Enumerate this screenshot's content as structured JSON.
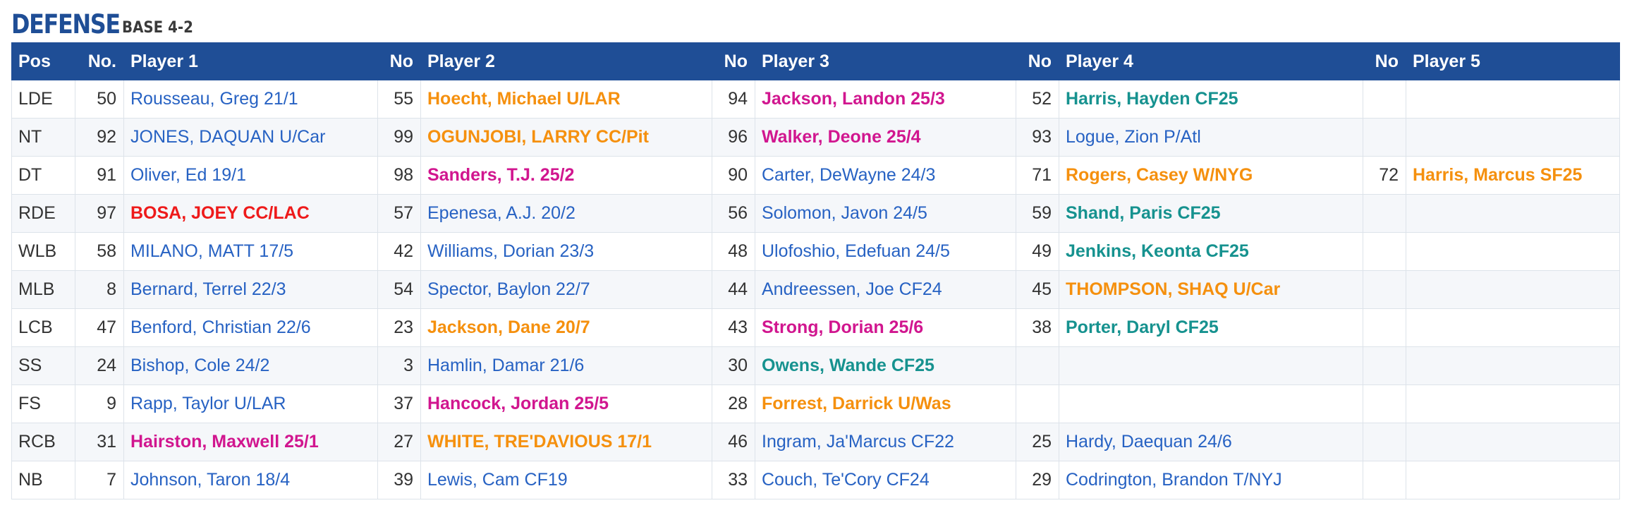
{
  "heading": {
    "title": "DEFENSE",
    "subtitle": "BASE 4-2"
  },
  "columns": [
    "Pos",
    "No.",
    "Player 1",
    "No",
    "Player 2",
    "No",
    "Player 3",
    "No",
    "Player 4",
    "No",
    "Player 5"
  ],
  "colors": {
    "header_bg": "#1f4e96",
    "blue": "#2762c3",
    "orange": "#f5900e",
    "magenta": "#d1168f",
    "teal": "#16928f",
    "red": "#ee1a1a"
  },
  "rows": [
    {
      "pos": "LDE",
      "players": [
        {
          "no": "50",
          "name": "Rousseau, Greg 21/1",
          "color": "blue",
          "bold": false
        },
        {
          "no": "55",
          "name": "Hoecht, Michael U/LAR",
          "color": "orange",
          "bold": true
        },
        {
          "no": "94",
          "name": "Jackson, Landon 25/3",
          "color": "magenta",
          "bold": true
        },
        {
          "no": "52",
          "name": "Harris, Hayden CF25",
          "color": "teal",
          "bold": true
        },
        {
          "no": "",
          "name": "",
          "color": "blue",
          "bold": false
        }
      ]
    },
    {
      "pos": "NT",
      "players": [
        {
          "no": "92",
          "name": "JONES, DAQUAN U/Car",
          "color": "blue",
          "bold": false
        },
        {
          "no": "99",
          "name": "OGUNJOBI, LARRY CC/Pit",
          "color": "orange",
          "bold": true
        },
        {
          "no": "96",
          "name": "Walker, Deone 25/4",
          "color": "magenta",
          "bold": true
        },
        {
          "no": "93",
          "name": "Logue, Zion P/Atl",
          "color": "blue",
          "bold": false
        },
        {
          "no": "",
          "name": "",
          "color": "blue",
          "bold": false
        }
      ]
    },
    {
      "pos": "DT",
      "players": [
        {
          "no": "91",
          "name": "Oliver, Ed 19/1",
          "color": "blue",
          "bold": false
        },
        {
          "no": "98",
          "name": "Sanders, T.J. 25/2",
          "color": "magenta",
          "bold": true
        },
        {
          "no": "90",
          "name": "Carter, DeWayne 24/3",
          "color": "blue",
          "bold": false
        },
        {
          "no": "71",
          "name": "Rogers, Casey W/NYG",
          "color": "orange",
          "bold": true
        },
        {
          "no": "72",
          "name": "Harris, Marcus SF25",
          "color": "orange",
          "bold": true
        }
      ]
    },
    {
      "pos": "RDE",
      "players": [
        {
          "no": "97",
          "name": "BOSA, JOEY CC/LAC",
          "color": "red",
          "bold": true
        },
        {
          "no": "57",
          "name": "Epenesa, A.J. 20/2",
          "color": "blue",
          "bold": false
        },
        {
          "no": "56",
          "name": "Solomon, Javon 24/5",
          "color": "blue",
          "bold": false
        },
        {
          "no": "59",
          "name": "Shand, Paris CF25",
          "color": "teal",
          "bold": true
        },
        {
          "no": "",
          "name": "",
          "color": "blue",
          "bold": false
        }
      ]
    },
    {
      "pos": "WLB",
      "players": [
        {
          "no": "58",
          "name": "MILANO, MATT 17/5",
          "color": "blue",
          "bold": false
        },
        {
          "no": "42",
          "name": "Williams, Dorian 23/3",
          "color": "blue",
          "bold": false
        },
        {
          "no": "48",
          "name": "Ulofoshio, Edefuan 24/5",
          "color": "blue",
          "bold": false
        },
        {
          "no": "49",
          "name": "Jenkins, Keonta CF25",
          "color": "teal",
          "bold": true
        },
        {
          "no": "",
          "name": "",
          "color": "blue",
          "bold": false
        }
      ]
    },
    {
      "pos": "MLB",
      "players": [
        {
          "no": "8",
          "name": "Bernard, Terrel 22/3",
          "color": "blue",
          "bold": false
        },
        {
          "no": "54",
          "name": "Spector, Baylon 22/7",
          "color": "blue",
          "bold": false
        },
        {
          "no": "44",
          "name": "Andreessen, Joe CF24",
          "color": "blue",
          "bold": false
        },
        {
          "no": "45",
          "name": "THOMPSON, SHAQ U/Car",
          "color": "orange",
          "bold": true
        },
        {
          "no": "",
          "name": "",
          "color": "blue",
          "bold": false
        }
      ]
    },
    {
      "pos": "LCB",
      "players": [
        {
          "no": "47",
          "name": "Benford, Christian 22/6",
          "color": "blue",
          "bold": false
        },
        {
          "no": "23",
          "name": "Jackson, Dane 20/7",
          "color": "orange",
          "bold": true
        },
        {
          "no": "43",
          "name": "Strong, Dorian 25/6",
          "color": "magenta",
          "bold": true
        },
        {
          "no": "38",
          "name": "Porter, Daryl CF25",
          "color": "teal",
          "bold": true
        },
        {
          "no": "",
          "name": "",
          "color": "blue",
          "bold": false
        }
      ]
    },
    {
      "pos": "SS",
      "players": [
        {
          "no": "24",
          "name": "Bishop, Cole 24/2",
          "color": "blue",
          "bold": false
        },
        {
          "no": "3",
          "name": "Hamlin, Damar 21/6",
          "color": "blue",
          "bold": false
        },
        {
          "no": "30",
          "name": "Owens, Wande CF25",
          "color": "teal",
          "bold": true
        },
        {
          "no": "",
          "name": "",
          "color": "blue",
          "bold": false
        },
        {
          "no": "",
          "name": "",
          "color": "blue",
          "bold": false
        }
      ]
    },
    {
      "pos": "FS",
      "players": [
        {
          "no": "9",
          "name": "Rapp, Taylor U/LAR",
          "color": "blue",
          "bold": false
        },
        {
          "no": "37",
          "name": "Hancock, Jordan 25/5",
          "color": "magenta",
          "bold": true
        },
        {
          "no": "28",
          "name": "Forrest, Darrick U/Was",
          "color": "orange",
          "bold": true
        },
        {
          "no": "",
          "name": "",
          "color": "blue",
          "bold": false
        },
        {
          "no": "",
          "name": "",
          "color": "blue",
          "bold": false
        }
      ]
    },
    {
      "pos": "RCB",
      "players": [
        {
          "no": "31",
          "name": "Hairston, Maxwell 25/1",
          "color": "magenta",
          "bold": true
        },
        {
          "no": "27",
          "name": "WHITE, TRE'DAVIOUS 17/1",
          "color": "orange",
          "bold": true
        },
        {
          "no": "46",
          "name": "Ingram, Ja'Marcus CF22",
          "color": "blue",
          "bold": false
        },
        {
          "no": "25",
          "name": "Hardy, Daequan 24/6",
          "color": "blue",
          "bold": false
        },
        {
          "no": "",
          "name": "",
          "color": "blue",
          "bold": false
        }
      ]
    },
    {
      "pos": "NB",
      "players": [
        {
          "no": "7",
          "name": "Johnson, Taron 18/4",
          "color": "blue",
          "bold": false
        },
        {
          "no": "39",
          "name": "Lewis, Cam CF19",
          "color": "blue",
          "bold": false
        },
        {
          "no": "33",
          "name": "Couch, Te'Cory CF24",
          "color": "blue",
          "bold": false
        },
        {
          "no": "29",
          "name": "Codrington, Brandon T/NYJ",
          "color": "blue",
          "bold": false
        },
        {
          "no": "",
          "name": "",
          "color": "blue",
          "bold": false
        }
      ]
    }
  ]
}
